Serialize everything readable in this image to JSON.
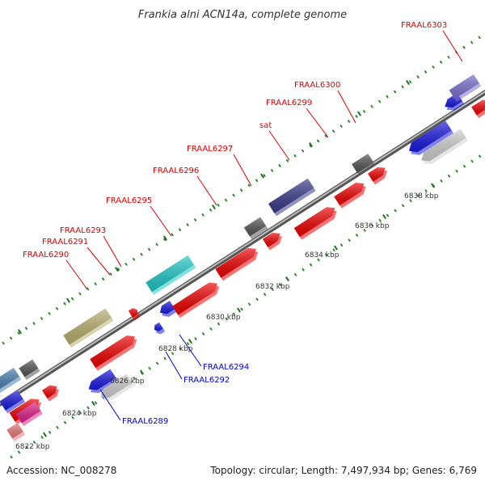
{
  "title": "Frankia alni ACN14a, complete genome",
  "footer": {
    "accession": "Accession: NC_008278",
    "summary": "Topology: circular; Length: 7,497,934 bp; Genes: 6,769"
  },
  "colors": {
    "forward_label": "#dd0000",
    "reverse_label": "#0000cc",
    "backbone": "#888888",
    "tick": "#2f8a2f"
  },
  "scale_labels": [
    "6822 kbp",
    "6824 kbp",
    "6826 kbp",
    "6828 kbp",
    "6830 kbp",
    "6832 kbp",
    "6834 kbp",
    "6836 kbp",
    "6838 kbp"
  ],
  "gene_labels_forward": [
    "FRAAL6290",
    "FRAAL6291",
    "FRAAL6293",
    "FRAAL6295",
    "FRAAL6296",
    "FRAAL6297",
    "sat",
    "FRAAL6299",
    "FRAAL6300",
    "FRAAL6303"
  ],
  "gene_labels_reverse": [
    "FRAAL6289",
    "FRAAL6292",
    "FRAAL6294"
  ]
}
